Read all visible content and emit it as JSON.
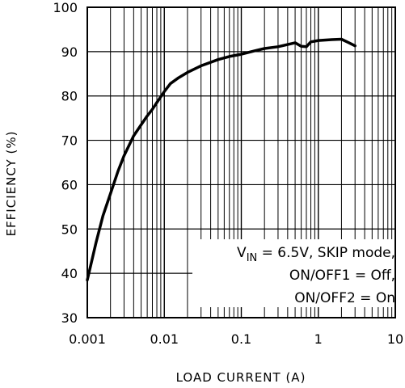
{
  "chart_data": {
    "type": "line",
    "xlabel": "LOAD CURRENT (A)",
    "ylabel": "EFFICIENCY (%)",
    "x_scale": "log",
    "xlim": [
      0.001,
      10
    ],
    "ylim": [
      30,
      100
    ],
    "grid": true,
    "x_ticks": [
      "0.001",
      "0.01",
      "0.1",
      "1",
      "10"
    ],
    "y_ticks": [
      "30",
      "40",
      "50",
      "60",
      "70",
      "80",
      "90",
      "100"
    ],
    "annotation": {
      "line1_prefix": "V",
      "line1_sub": "IN",
      "line1_rest": " = 6.5V, SKIP mode,",
      "line2": "ON/OFF1 = Off,",
      "line3": "ON/OFF2 = On"
    },
    "series": [
      {
        "x": [
          0.001,
          0.0013,
          0.0016,
          0.002,
          0.0025,
          0.003,
          0.004,
          0.005,
          0.006,
          0.007,
          0.008,
          0.01,
          0.012,
          0.015,
          0.02,
          0.03,
          0.05,
          0.07,
          0.1,
          0.15,
          0.2,
          0.3,
          0.5,
          0.6,
          0.7,
          0.8,
          1,
          1.5,
          2,
          2.5,
          3
        ],
        "y": [
          38.5,
          47,
          53,
          58,
          63,
          66.5,
          71,
          73.5,
          75.5,
          77,
          78.5,
          81,
          82.8,
          84,
          85.3,
          86.8,
          88.2,
          88.9,
          89.4,
          90.2,
          90.7,
          91.1,
          92,
          91.2,
          91.1,
          92.2,
          92.5,
          92.7,
          92.8,
          92.0,
          91.3
        ]
      }
    ]
  }
}
